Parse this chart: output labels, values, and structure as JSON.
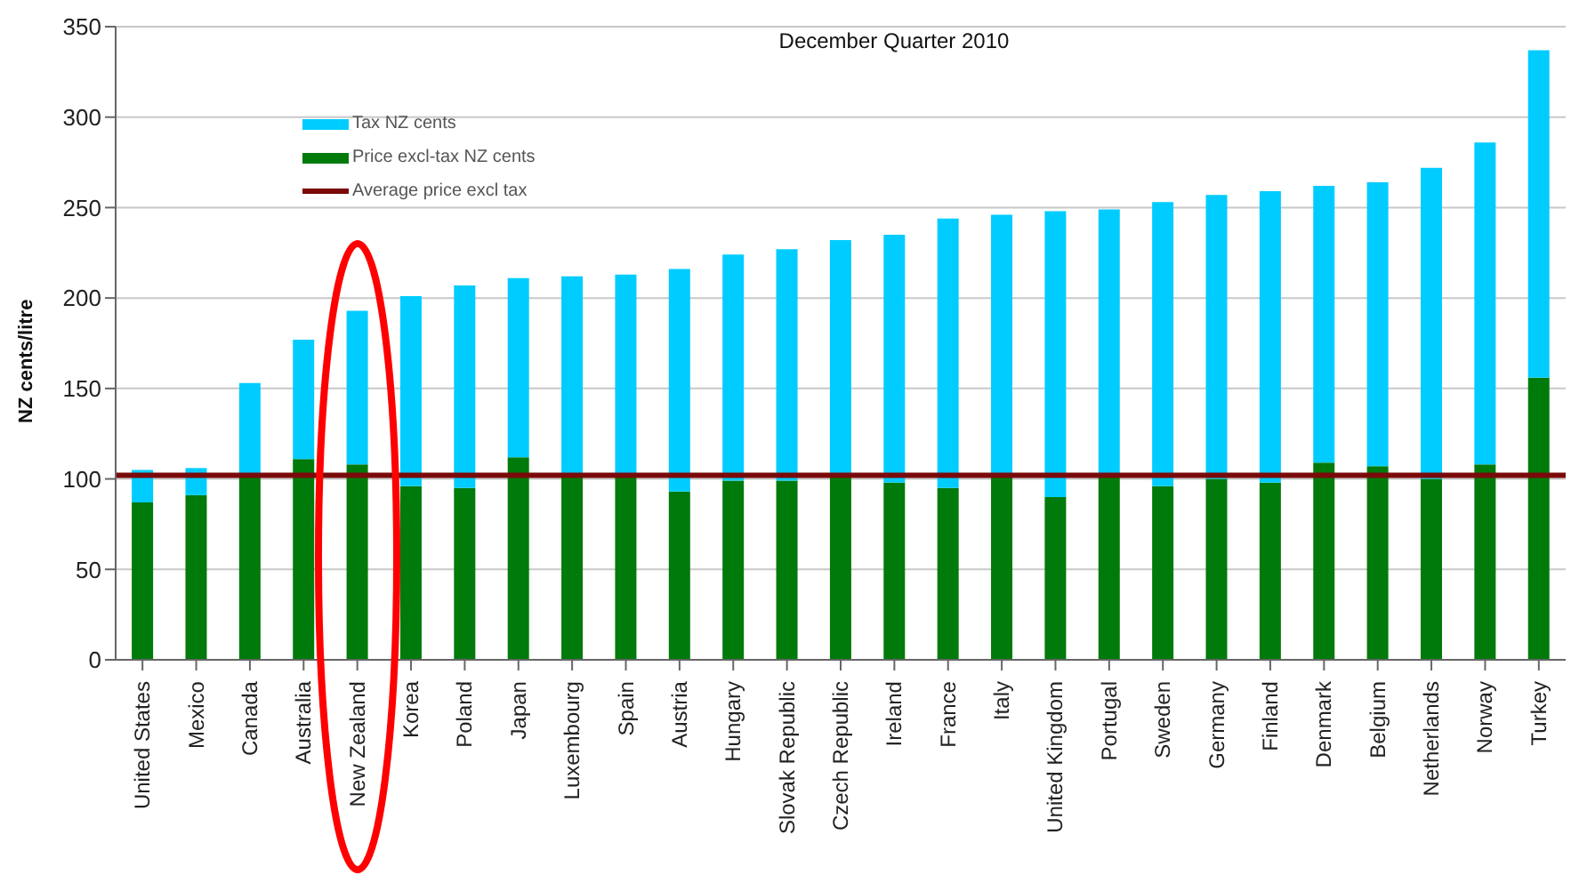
{
  "chart_data": {
    "type": "bar",
    "stacked": true,
    "title": "December Quarter 2010",
    "ylabel": "NZ cents/litre",
    "categories": [
      "United States",
      "Mexico",
      "Canada",
      "Australia",
      "New Zealand",
      "Korea",
      "Poland",
      "Japan",
      "Luxembourg",
      "Spain",
      "Austria",
      "Hungary",
      "Slovak Republic",
      "Czech Republic",
      "Ireland",
      "France",
      "Italy",
      "United Kingdom",
      "Portugal",
      "Sweden",
      "Germany",
      "Finland",
      "Denmark",
      "Belgium",
      "Netherlands",
      "Norway",
      "Turkey"
    ],
    "series": [
      {
        "name": "Price excl-tax NZ cents",
        "color": "#007a0a",
        "values": [
          87,
          91,
          102,
          111,
          108,
          96,
          95,
          112,
          103,
          103,
          93,
          99,
          99,
          101,
          98,
          95,
          103,
          90,
          103,
          96,
          100,
          98,
          109,
          107,
          100,
          108,
          156
        ]
      },
      {
        "name": "Tax NZ cents",
        "color": "#00ccff",
        "values": [
          18,
          15,
          51,
          66,
          85,
          105,
          112,
          99,
          109,
          110,
          123,
          125,
          128,
          131,
          137,
          149,
          143,
          158,
          146,
          157,
          157,
          161,
          153,
          157,
          172,
          178,
          181
        ]
      }
    ],
    "ref_lines": [
      {
        "axis": "y",
        "value": 102,
        "label": "Average price excl tax",
        "color": "#7a0a0a"
      }
    ],
    "ylim": [
      0,
      350
    ],
    "yticks": [
      0,
      50,
      100,
      150,
      200,
      250,
      300,
      350
    ],
    "grid": "y",
    "legend": "top left"
  }
}
